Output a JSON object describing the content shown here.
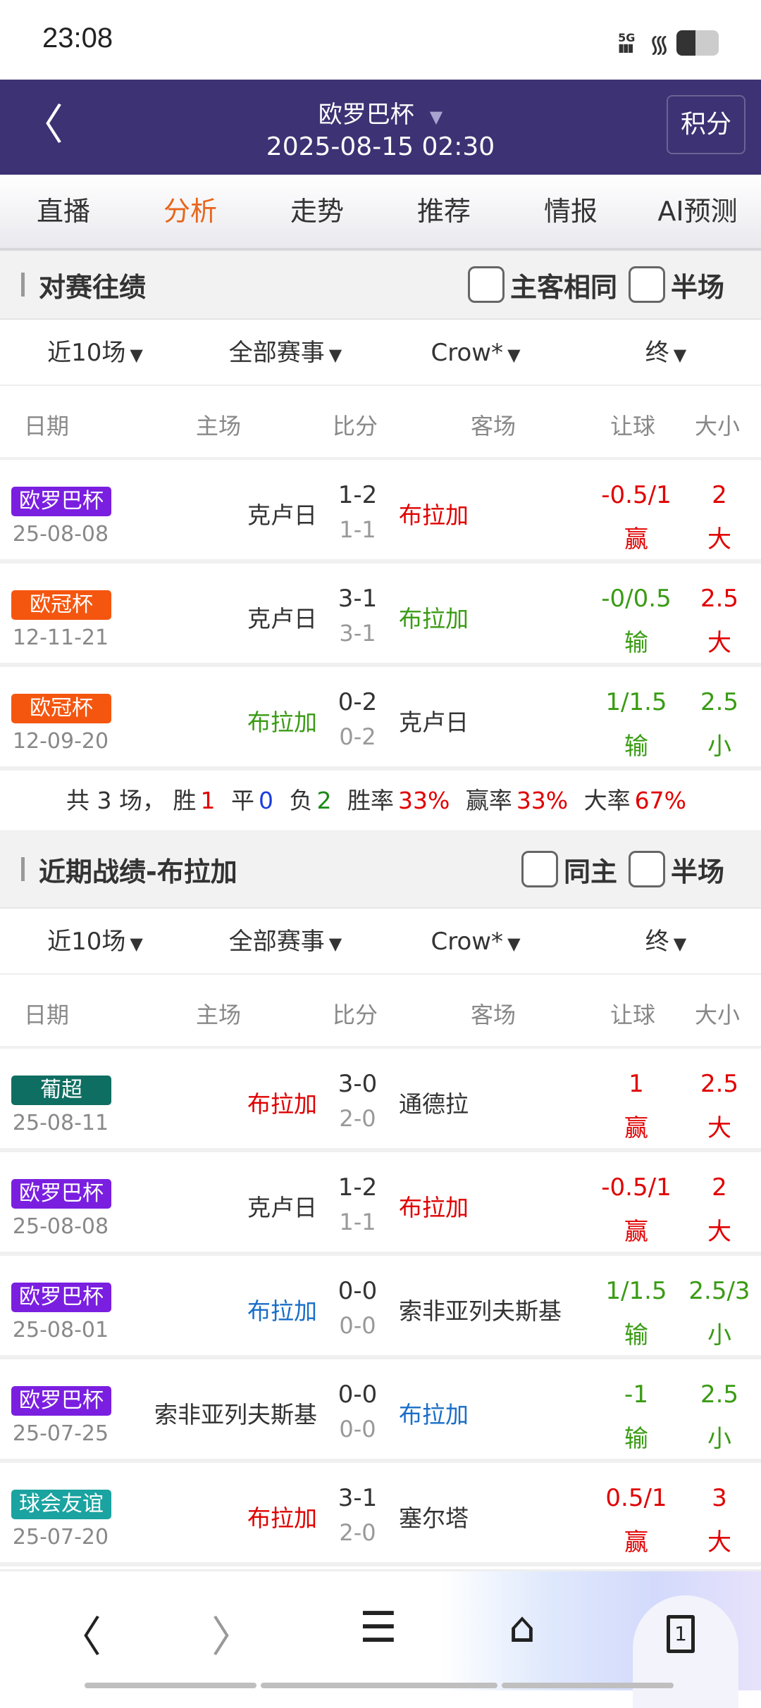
{
  "status": {
    "time": "23:08",
    "network": "5G"
  },
  "header": {
    "title": "欧罗巴杯",
    "datetime": "2025-08-15 02:30",
    "score_btn": "积分"
  },
  "tabs": [
    "直播",
    "分析",
    "走势",
    "推荐",
    "情报",
    "AI预测"
  ],
  "active_tab": 1,
  "colors": {
    "header": "#3d3273",
    "active_tab": "#e8661d",
    "red": "#e00000",
    "green": "#3a9b14",
    "blue": "#1a6ec8"
  },
  "section1": {
    "title": "对赛往绩",
    "opt1": "主客相同",
    "opt2": "半场",
    "filters": [
      "近10场",
      "全部赛事",
      "Crow*",
      "终"
    ],
    "columns": [
      "日期",
      "主场",
      "比分",
      "客场",
      "让球",
      "大小"
    ],
    "rows": [
      {
        "league": "欧罗巴杯",
        "lc": "#7a1fe0",
        "date": "25-08-08",
        "home": "克卢日",
        "hc": "#333",
        "score": "1-2",
        "half": "1-1",
        "away": "布拉加",
        "ac": "#e00000",
        "hcap": "-0.5/1",
        "hres": "赢",
        "hcol": "#e00000",
        "size": "2",
        "sres": "大",
        "scol": "#e00000",
        "s1col": "#e00000"
      },
      {
        "league": "欧冠杯",
        "lc": "#f5560f",
        "date": "12-11-21",
        "home": "克卢日",
        "hc": "#333",
        "score": "3-1",
        "half": "3-1",
        "away": "布拉加",
        "ac": "#3a9b14",
        "hcap": "-0/0.5",
        "hres": "输",
        "hcol": "#3a9b14",
        "size": "2.5",
        "sres": "大",
        "scol": "#e00000",
        "s1col": "#e00000"
      },
      {
        "league": "欧冠杯",
        "lc": "#f5560f",
        "date": "12-09-20",
        "home": "布拉加",
        "hc": "#3a9b14",
        "score": "0-2",
        "half": "0-2",
        "away": "克卢日",
        "ac": "#333",
        "hcap": "1/1.5",
        "hres": "输",
        "hcol": "#3a9b14",
        "size": "2.5",
        "sres": "小",
        "scol": "#3a9b14",
        "s1col": "#3a9b14"
      }
    ],
    "summary": {
      "total_pre": "共 3 场，",
      "win_l": "胜",
      "win": "1",
      "draw_l": "平",
      "draw": "0",
      "loss_l": "负",
      "loss": "2",
      "wr_l": "胜率",
      "wr": "33%",
      "yr_l": "赢率",
      "yr": "33%",
      "dr_l": "大率",
      "dr": "67%"
    }
  },
  "section2": {
    "title": "近期战绩-布拉加",
    "opt1": "同主",
    "opt2": "半场",
    "filters": [
      "近10场",
      "全部赛事",
      "Crow*",
      "终"
    ],
    "columns": [
      "日期",
      "主场",
      "比分",
      "客场",
      "让球",
      "大小"
    ],
    "rows": [
      {
        "league": "葡超",
        "lc": "#0f6e62",
        "date": "25-08-11",
        "home": "布拉加",
        "hc": "#e00000",
        "score": "3-0",
        "half": "2-0",
        "away": "通德拉",
        "ac": "#333",
        "hcap": "1",
        "hres": "赢",
        "hcol": "#e00000",
        "size": "2.5",
        "sres": "大",
        "scol": "#e00000",
        "s1col": "#e00000"
      },
      {
        "league": "欧罗巴杯",
        "lc": "#7a1fe0",
        "date": "25-08-08",
        "home": "克卢日",
        "hc": "#333",
        "score": "1-2",
        "half": "1-1",
        "away": "布拉加",
        "ac": "#e00000",
        "hcap": "-0.5/1",
        "hres": "赢",
        "hcol": "#e00000",
        "size": "2",
        "sres": "大",
        "scol": "#e00000",
        "s1col": "#e00000"
      },
      {
        "league": "欧罗巴杯",
        "lc": "#7a1fe0",
        "date": "25-08-01",
        "home": "布拉加",
        "hc": "#1a6ec8",
        "score": "0-0",
        "half": "0-0",
        "away": "索非亚列夫斯基",
        "ac": "#333",
        "hcap": "1/1.5",
        "hres": "输",
        "hcol": "#3a9b14",
        "size": "2.5/3",
        "sres": "小",
        "scol": "#3a9b14",
        "s1col": "#3a9b14"
      },
      {
        "league": "欧罗巴杯",
        "lc": "#7a1fe0",
        "date": "25-07-25",
        "home": "索非亚列夫斯基",
        "hc": "#333",
        "score": "0-0",
        "half": "0-0",
        "away": "布拉加",
        "ac": "#1a6ec8",
        "hcap": "-1",
        "hres": "输",
        "hcol": "#3a9b14",
        "size": "2.5",
        "sres": "小",
        "scol": "#3a9b14",
        "s1col": "#3a9b14"
      },
      {
        "league": "球会友谊",
        "lc": "#1aa3a0",
        "date": "25-07-20",
        "home": "布拉加",
        "hc": "#e00000",
        "score": "3-1",
        "half": "2-0",
        "away": "塞尔塔",
        "ac": "#333",
        "hcap": "0.5/1",
        "hres": "赢",
        "hcol": "#e00000",
        "size": "3",
        "sres": "大",
        "scol": "#e00000",
        "s1col": "#e00000"
      }
    ]
  },
  "bottom": {
    "tab_count": "1"
  }
}
